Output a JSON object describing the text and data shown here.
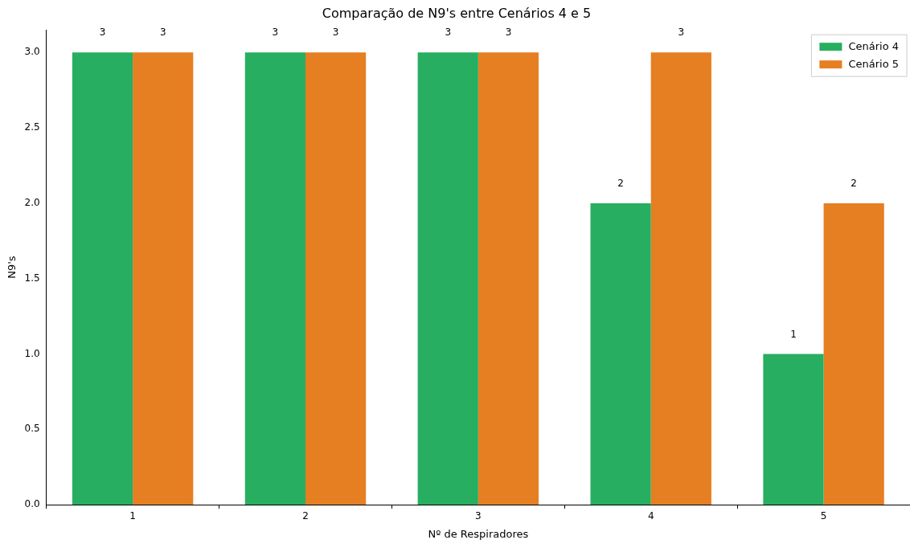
{
  "chart_data": {
    "type": "bar",
    "title": "Comparação de N9's entre Cenários 4 e 5",
    "xlabel": "Nº de Respiradores",
    "ylabel": "N9's",
    "categories": [
      "1",
      "2",
      "3",
      "4",
      "5"
    ],
    "series": [
      {
        "name": "Cenário 4",
        "color": "#27ae60",
        "values": [
          3,
          3,
          3,
          2,
          1
        ]
      },
      {
        "name": "Cenário 5",
        "color": "#e67e22",
        "values": [
          3,
          3,
          3,
          3,
          2
        ]
      }
    ],
    "ylim": [
      0,
      3.15
    ],
    "yticks": [
      {
        "value": 0,
        "label": "0.0"
      },
      0.5,
      {
        "value": 1,
        "label": "1.0"
      },
      1.5,
      {
        "value": 2,
        "label": "2.0"
      },
      2.5,
      {
        "value": 3,
        "label": "3.0"
      }
    ],
    "grid": false,
    "legend": "top right",
    "data_labels": true
  }
}
